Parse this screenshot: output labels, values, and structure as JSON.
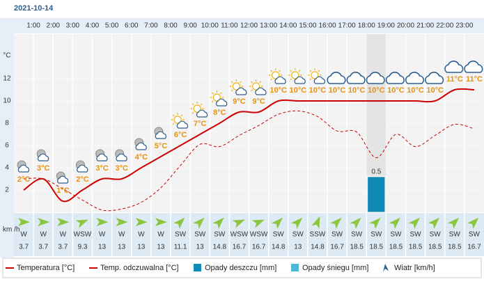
{
  "chart_data": {
    "type": "line",
    "title": "2021-10-14",
    "y_unit": "°C",
    "categories": [
      null,
      "1:00",
      "2:00",
      "3:00",
      "4:00",
      "5:00",
      "6:00",
      "7:00",
      "8:00",
      "9:00",
      "10:00",
      "11:00",
      "12:00",
      "13:00",
      "14:00",
      "15:00",
      "16:00",
      "17:00",
      "18:00",
      "19:00",
      "20:00",
      "21:00",
      "22:00",
      "23:00"
    ],
    "ylim": [
      0,
      16
    ],
    "yticks": [
      2,
      4,
      6,
      8,
      10,
      12
    ],
    "y2lim": [
      0,
      2.5
    ],
    "grid": true,
    "series": [
      {
        "name": "Temperatura [°C]",
        "color": "#cc0000",
        "style": "solid",
        "values": [
          2,
          3,
          1,
          2,
          3,
          3,
          4,
          5,
          6,
          7,
          8,
          9,
          9,
          10,
          10,
          10,
          10,
          10,
          10,
          10,
          10,
          10,
          11,
          11
        ],
        "value_labels": [
          "2°C",
          "3°C",
          "1°C",
          "2°C",
          "3°C",
          "3°C",
          "4°C",
          "5°C",
          "6°C",
          "7°C",
          "8°C",
          "9°C",
          "9°C",
          "10°C",
          "10°C",
          "10°C",
          "10°C",
          "10°C",
          "10°C",
          "10°C",
          "10°C",
          "10°C",
          "11°C",
          "11°C"
        ]
      },
      {
        "name": "Temp. odczuwalna [°C]",
        "color": "#cc0000",
        "style": "dashed",
        "values": [
          3,
          3,
          2.1,
          1.1,
          0.2,
          0.3,
          0.9,
          2.2,
          4.2,
          6.1,
          5.9,
          6.9,
          7.8,
          8.8,
          9.1,
          8.6,
          7.3,
          7.2,
          4.9,
          7,
          5.9,
          6.9,
          7.9,
          7.5
        ]
      },
      {
        "name": "Opady deszczu [mm]",
        "color": "#0f89b5",
        "type": "bar",
        "axis": "y2",
        "values": [
          0,
          0,
          0,
          0,
          0,
          0,
          0,
          0,
          0,
          0,
          0,
          0,
          0,
          0,
          0,
          0,
          0,
          0,
          0.5,
          0,
          0,
          0,
          0,
          0
        ]
      },
      {
        "name": "Opady śniegu [mm]",
        "color": "#4db8d8",
        "type": "bar",
        "axis": "y2",
        "values": [
          0,
          0,
          0,
          0,
          0,
          0,
          0,
          0,
          0,
          0,
          0,
          0,
          0,
          0,
          0,
          0,
          0,
          0,
          0,
          0,
          0,
          0,
          0,
          0
        ]
      }
    ],
    "wind": {
      "name": "Wiatr [km/h]",
      "unit": "km /h",
      "color": "#8cc63f",
      "directions": [
        "W",
        "W",
        "W",
        "WSW",
        "W",
        "W",
        "W",
        "W",
        "SW",
        "SW",
        "SW",
        "WSW",
        "WSW",
        "SW",
        "SW",
        "SSW",
        "SW",
        "SW",
        "SW",
        "SW",
        "SW",
        "SW",
        "SW",
        "SW"
      ],
      "values": [
        3.7,
        3.7,
        3.7,
        9.3,
        13,
        13,
        13,
        13,
        11.1,
        13,
        14.8,
        16.7,
        16.7,
        14.8,
        13,
        14.8,
        16.7,
        18.5,
        18.5,
        18.5,
        18.5,
        18.5,
        18.5,
        16.7
      ]
    }
  }
}
